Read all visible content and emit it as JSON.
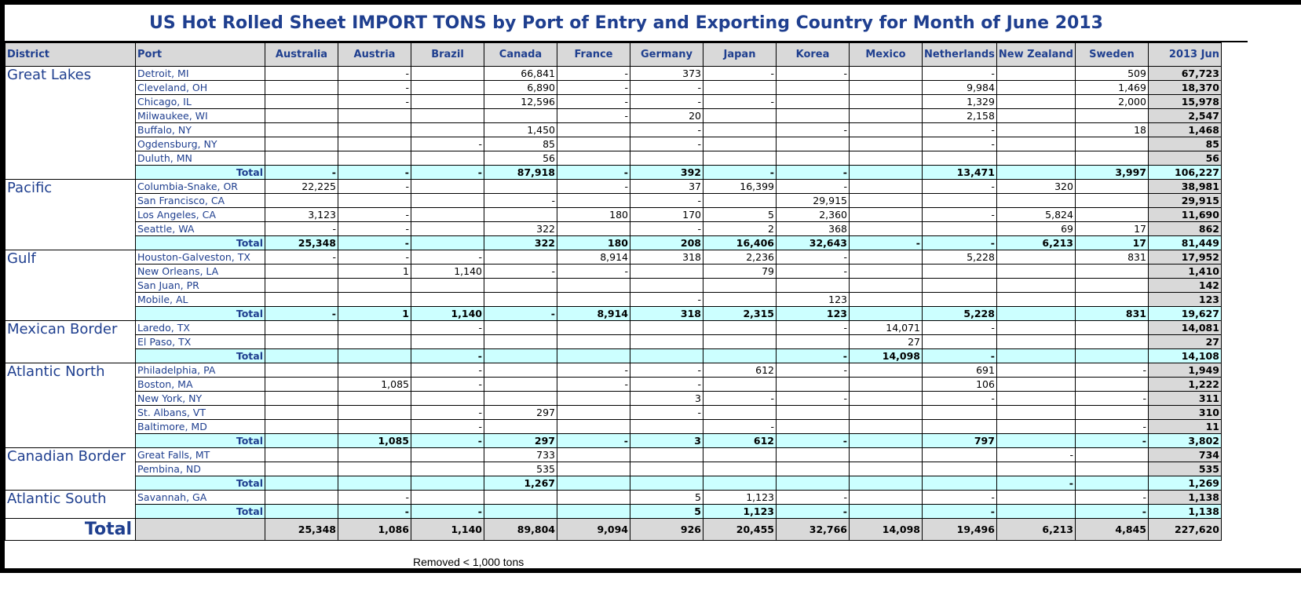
{
  "title": "US Hot Rolled Sheet IMPORT TONS by Port of Entry and Exporting Country for Month of June 2013",
  "headers": [
    "District",
    "Port",
    "Australia",
    "Austria",
    "Brazil",
    "Canada",
    "France",
    "Germany",
    "Japan",
    "Korea",
    "Mexico",
    "Netherlands",
    "New Zealand",
    "Sweden",
    "2013 Jun"
  ],
  "total_label": "Total",
  "districts": [
    {
      "name": "Great Lakes",
      "ports": [
        {
          "port": "Detroit, MI",
          "cells": [
            "",
            "-",
            "",
            "66,841",
            "-",
            "373",
            "-",
            "-",
            "",
            "-",
            "",
            "509",
            "67,723"
          ]
        },
        {
          "port": "Cleveland, OH",
          "cells": [
            "",
            "-",
            "",
            "6,890",
            "-",
            "-",
            "",
            "",
            "",
            "9,984",
            "",
            "1,469",
            "18,370"
          ]
        },
        {
          "port": "Chicago, IL",
          "cells": [
            "",
            "-",
            "",
            "12,596",
            "-",
            "-",
            "-",
            "",
            "",
            "1,329",
            "",
            "2,000",
            "15,978"
          ]
        },
        {
          "port": "Milwaukee, WI",
          "cells": [
            "",
            "",
            "",
            "",
            "-",
            "20",
            "",
            "",
            "",
            "2,158",
            "",
            "",
            "2,547"
          ]
        },
        {
          "port": "Buffalo, NY",
          "cells": [
            "",
            "",
            "",
            "1,450",
            "",
            "-",
            "",
            "-",
            "",
            "-",
            "",
            "18",
            "1,468"
          ]
        },
        {
          "port": "Ogdensburg, NY",
          "cells": [
            "",
            "",
            "-",
            "85",
            "",
            "-",
            "",
            "",
            "",
            "-",
            "",
            "",
            "85"
          ]
        },
        {
          "port": "Duluth, MN",
          "cells": [
            "",
            "",
            "",
            "56",
            "",
            "",
            "",
            "",
            "",
            "",
            "",
            "",
            "56"
          ]
        }
      ],
      "total": [
        "-",
        "-",
        "-",
        "87,918",
        "-",
        "392",
        "-",
        "-",
        "",
        "13,471",
        "",
        "3,997",
        "106,227"
      ]
    },
    {
      "name": "Pacific",
      "ports": [
        {
          "port": "Columbia-Snake, OR",
          "cells": [
            "22,225",
            "-",
            "",
            "",
            "-",
            "37",
            "16,399",
            "-",
            "",
            "-",
            "320",
            "",
            "38,981"
          ]
        },
        {
          "port": "San Francisco, CA",
          "cells": [
            "",
            "",
            "",
            "-",
            "",
            "-",
            "",
            "29,915",
            "",
            "",
            "",
            "",
            "29,915"
          ]
        },
        {
          "port": "Los Angeles, CA",
          "cells": [
            "3,123",
            "-",
            "",
            "",
            "180",
            "170",
            "5",
            "2,360",
            "",
            "-",
            "5,824",
            "",
            "11,690"
          ]
        },
        {
          "port": "Seattle, WA",
          "cells": [
            "-",
            "-",
            "",
            "322",
            "",
            "-",
            "2",
            "368",
            "",
            "",
            "69",
            "17",
            "862"
          ]
        }
      ],
      "total": [
        "25,348",
        "-",
        "",
        "322",
        "180",
        "208",
        "16,406",
        "32,643",
        "-",
        "-",
        "6,213",
        "17",
        "81,449"
      ]
    },
    {
      "name": "Gulf",
      "ports": [
        {
          "port": "Houston-Galveston, TX",
          "cells": [
            "-",
            "-",
            "-",
            "",
            "8,914",
            "318",
            "2,236",
            "-",
            "",
            "5,228",
            "",
            "831",
            "17,952"
          ]
        },
        {
          "port": "New Orleans, LA",
          "cells": [
            "",
            "1",
            "1,140",
            "-",
            "-",
            "",
            "79",
            "-",
            "",
            "",
            "",
            "",
            "1,410"
          ]
        },
        {
          "port": "San Juan, PR",
          "cells": [
            "",
            "",
            "",
            "",
            "",
            "",
            "",
            "",
            "",
            "",
            "",
            "",
            "142"
          ]
        },
        {
          "port": "Mobile, AL",
          "cells": [
            "",
            "",
            "",
            "",
            "",
            "-",
            "",
            "123",
            "",
            "",
            "",
            "",
            "123"
          ]
        }
      ],
      "total": [
        "-",
        "1",
        "1,140",
        "-",
        "8,914",
        "318",
        "2,315",
        "123",
        "",
        "5,228",
        "",
        "831",
        "19,627"
      ]
    },
    {
      "name": "Mexican Border",
      "ports": [
        {
          "port": "Laredo, TX",
          "cells": [
            "",
            "",
            "-",
            "",
            "",
            "",
            "",
            "-",
            "14,071",
            "-",
            "",
            "",
            "14,081"
          ]
        },
        {
          "port": "El Paso, TX",
          "cells": [
            "",
            "",
            "",
            "",
            "",
            "",
            "",
            "",
            "27",
            "",
            "",
            "",
            "27"
          ]
        }
      ],
      "total": [
        "",
        "",
        "-",
        "",
        "",
        "",
        "",
        "-",
        "14,098",
        "-",
        "",
        "",
        "14,108"
      ]
    },
    {
      "name": "Atlantic North",
      "ports": [
        {
          "port": "Philadelphia, PA",
          "cells": [
            "",
            "",
            "-",
            "",
            "-",
            "-",
            "612",
            "-",
            "",
            "691",
            "",
            "-",
            "1,949"
          ]
        },
        {
          "port": "Boston, MA",
          "cells": [
            "",
            "1,085",
            "-",
            "",
            "-",
            "-",
            "",
            "",
            "",
            "106",
            "",
            "",
            "1,222"
          ]
        },
        {
          "port": "New York, NY",
          "cells": [
            "",
            "",
            "",
            "",
            "",
            "3",
            "-",
            "-",
            "",
            "-",
            "",
            "-",
            "311"
          ]
        },
        {
          "port": "St. Albans, VT",
          "cells": [
            "",
            "",
            "-",
            "297",
            "",
            "-",
            "",
            "",
            "",
            "",
            "",
            "",
            "310"
          ]
        },
        {
          "port": "Baltimore, MD",
          "cells": [
            "",
            "",
            "-",
            "",
            "",
            "",
            "-",
            "",
            "",
            "",
            "",
            "-",
            "11"
          ]
        }
      ],
      "total": [
        "",
        "1,085",
        "-",
        "297",
        "-",
        "3",
        "612",
        "-",
        "",
        "797",
        "",
        "-",
        "3,802"
      ]
    },
    {
      "name": "Canadian Border",
      "ports": [
        {
          "port": "Great Falls, MT",
          "cells": [
            "",
            "",
            "",
            "733",
            "",
            "",
            "",
            "",
            "",
            "",
            "-",
            "",
            "734"
          ]
        },
        {
          "port": "Pembina, ND",
          "cells": [
            "",
            "",
            "",
            "535",
            "",
            "",
            "",
            "",
            "",
            "",
            "",
            "",
            "535"
          ]
        }
      ],
      "total": [
        "",
        "",
        "",
        "1,267",
        "",
        "",
        "",
        "",
        "",
        "",
        "-",
        "",
        "1,269"
      ]
    },
    {
      "name": "Atlantic South",
      "ports": [
        {
          "port": "Savannah, GA",
          "cells": [
            "",
            "-",
            "",
            "",
            "",
            "5",
            "1,123",
            "-",
            "",
            "-",
            "",
            "-",
            "1,138"
          ]
        }
      ],
      "total": [
        "",
        "-",
        "-",
        "",
        "",
        "5",
        "1,123",
        "-",
        "",
        "-",
        "",
        "-",
        "1,138"
      ]
    }
  ],
  "grand_total": {
    "label": "Total",
    "cells": [
      "25,348",
      "1,086",
      "1,140",
      "89,804",
      "9,094",
      "926",
      "20,455",
      "32,766",
      "14,098",
      "19,496",
      "6,213",
      "4,845",
      "227,620"
    ]
  },
  "footnote": "Removed < 1,000 tons"
}
